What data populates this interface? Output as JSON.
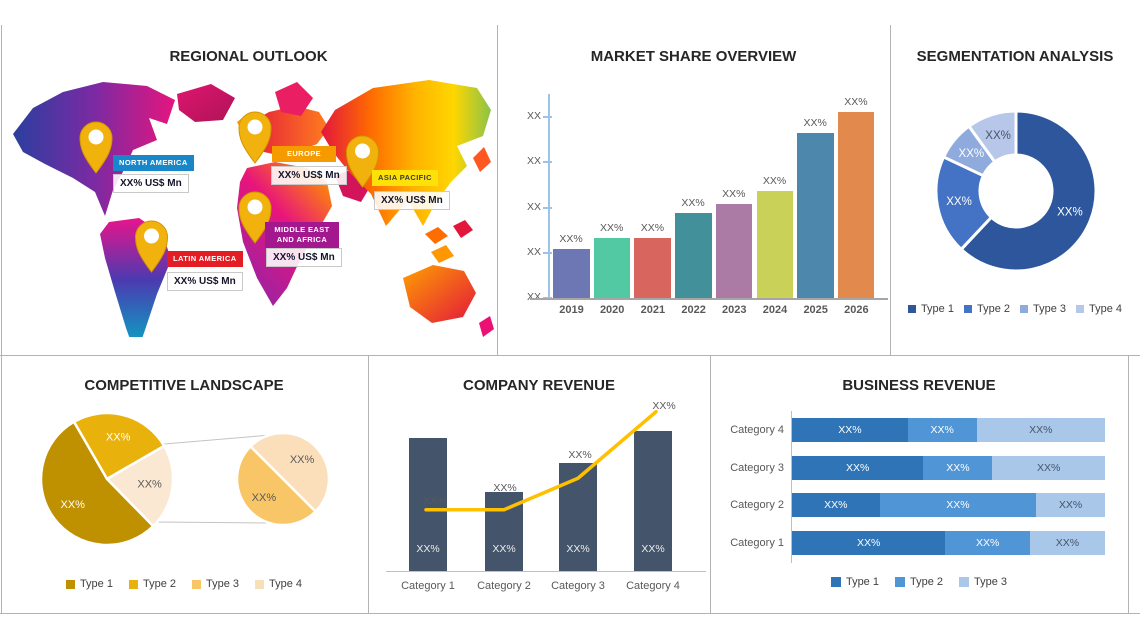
{
  "page": {
    "background": "#ffffff"
  },
  "panels": {
    "regional_outlook": {
      "title": "REGIONAL OUTLOOK",
      "regions": [
        {
          "name": "NORTH AMERICA",
          "value": "XX% US$ Mn",
          "color": "#1787c9",
          "text_color": "#ffffff"
        },
        {
          "name": "EUROPE",
          "value": "XX% US$ Mn",
          "color": "#f59b00",
          "text_color": "#ffffff"
        },
        {
          "name": "ASIA PACIFIC",
          "value": "XX% US$ Mn",
          "color": "#ffe10a",
          "text_color": "#3a3a3a"
        },
        {
          "name": "MIDDLE EAST AND AFRICA",
          "value": "XX% US$ Mn",
          "color": "#a4188f",
          "text_color": "#ffffff"
        },
        {
          "name": "LATIN AMERICA",
          "value": "XX% US$ Mn",
          "color": "#e41d25",
          "text_color": "#ffffff"
        }
      ]
    }
  },
  "chart_data": [
    {
      "id": "market_share",
      "type": "bar",
      "title": "MARKET SHARE OVERVIEW",
      "categories": [
        "2019",
        "2020",
        "2021",
        "2022",
        "2023",
        "2024",
        "2025",
        "2026"
      ],
      "bar_labels": [
        "XX%",
        "XX%",
        "XX%",
        "XX%",
        "XX%",
        "XX%",
        "XX%",
        "XX%"
      ],
      "values_axis_pct": [
        27,
        33,
        33,
        47,
        52,
        59,
        91,
        103
      ],
      "y_tick_labels": [
        "XX",
        "XX",
        "XX",
        "XX",
        "XX"
      ],
      "bar_colors": [
        "#6d77b4",
        "#52c9a2",
        "#d9655f",
        "#42909a",
        "#ab7aa5",
        "#c9d158",
        "#4d87ab",
        "#e28a4d"
      ],
      "axis_color": "#9dc3e6",
      "baseline_color": "#a6a6a6",
      "grid": false,
      "ylim_note": "axis labeled with placeholder XX ticks"
    },
    {
      "id": "segmentation",
      "type": "pie",
      "subtype": "donut",
      "title": "SEGMENTATION ANALYSIS",
      "labels": [
        "Type 1",
        "Type 2",
        "Type 3",
        "Type 4"
      ],
      "values_pct": [
        62,
        20,
        8,
        10
      ],
      "slice_labels": [
        "XX%",
        "XX%",
        "XX%",
        "XX%"
      ],
      "colors": [
        "#2d569c",
        "#4472c4",
        "#8faadc",
        "#b7c7e9"
      ],
      "slice_label_colors": [
        "#ffffff",
        "#ffffff",
        "#ffffff",
        "#44546a"
      ],
      "legend_position": "bottom"
    },
    {
      "id": "competitive",
      "type": "pie",
      "subtype": "pie-of-pie",
      "title": "COMPETITIVE LANDSCAPE",
      "legend": [
        {
          "label": "Type 1",
          "color": "#bf9000"
        },
        {
          "label": "Type 2",
          "color": "#e9b10b"
        },
        {
          "label": "Type 3",
          "color": "#f9c667"
        },
        {
          "label": "Type 4",
          "color": "#f7dfb6"
        }
      ],
      "main_pie": {
        "start_angle": -30,
        "slices": [
          {
            "pct": 25,
            "label": "XX%",
            "color": "#e9b10b",
            "label_color": "#ffffff"
          },
          {
            "pct": 21,
            "label": "XX%",
            "color": "#fbe8d3",
            "label_color": "#595959"
          },
          {
            "pct": 54,
            "label": "XX%",
            "color": "#bf9000",
            "label_color": "#ffffff"
          }
        ]
      },
      "secondary_pie": {
        "start_angle": -45,
        "slices": [
          {
            "pct": 50,
            "label": "XX%",
            "color": "#fbdfba",
            "label_color": "#595959"
          },
          {
            "pct": 50,
            "label": "XX%",
            "color": "#f9c667",
            "label_color": "#595959"
          }
        ]
      },
      "legend_position": "bottom"
    },
    {
      "id": "company_revenue",
      "type": "bar",
      "subtype": "bar-line-combo",
      "title": "COMPANY REVENUE",
      "categories": [
        "Category 1",
        "Category 2",
        "Category 3",
        "Category 4"
      ],
      "bar_heights_axis_pct": [
        76,
        45,
        62,
        80
      ],
      "bar_labels": [
        "XX%",
        "XX%",
        "XX%",
        "XX%"
      ],
      "line_values_axis_pct": [
        35,
        35,
        53,
        91
      ],
      "line_labels": [
        "XX%",
        "XX%",
        "XX%",
        "XX%"
      ],
      "bar_color": "#44546a",
      "line_color": "#ffc000",
      "grid": false
    },
    {
      "id": "business_revenue",
      "type": "bar",
      "subtype": "stacked-horizontal",
      "title": "BUSINESS REVENUE",
      "series": [
        {
          "name": "Type 1",
          "color": "#2e74b6"
        },
        {
          "name": "Type 2",
          "color": "#5095d5"
        },
        {
          "name": "Type 3",
          "color": "#a9c7e9"
        }
      ],
      "rows": [
        {
          "category": "Category 4",
          "pcts": [
            37,
            22,
            41
          ],
          "labels": [
            "XX%",
            "XX%",
            "XX%"
          ]
        },
        {
          "category": "Category 3",
          "pcts": [
            42,
            22,
            36
          ],
          "labels": [
            "XX%",
            "XX%",
            "XX%"
          ]
        },
        {
          "category": "Category 2",
          "pcts": [
            28,
            50,
            22
          ],
          "labels": [
            "XX%",
            "XX%",
            "XX%"
          ]
        },
        {
          "category": "Category 1",
          "pcts": [
            49,
            27,
            24
          ],
          "labels": [
            "XX%",
            "XX%",
            "XX%"
          ]
        }
      ],
      "segment_label_colors": [
        "#ffffff",
        "#ffffff",
        "#44546a"
      ],
      "legend_position": "bottom"
    }
  ]
}
